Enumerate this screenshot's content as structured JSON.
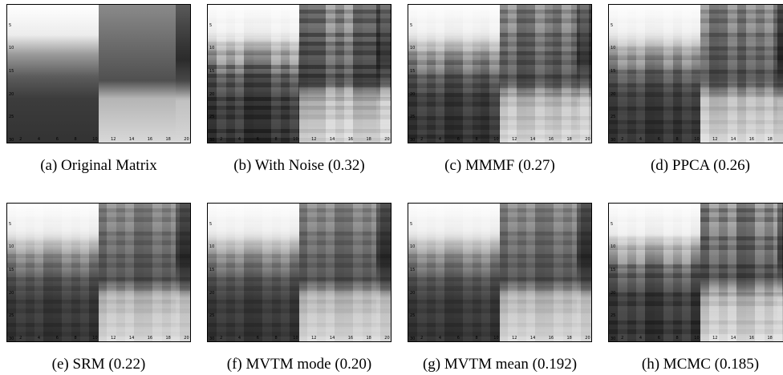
{
  "panels": [
    {
      "caption": "(a) Original Matrix"
    },
    {
      "caption": "(b) With Noise (0.32)"
    },
    {
      "caption": "(c) MMMF (0.27)"
    },
    {
      "caption": "(d) PPCA (0.26)"
    },
    {
      "caption": "(e) SRM (0.22)"
    },
    {
      "caption": "(f) MVTM mode (0.20)"
    },
    {
      "caption": "(g) MVTM mean (0.192)"
    },
    {
      "caption": "(h) MCMC (0.185)"
    }
  ],
  "xticks": [
    2,
    4,
    6,
    8,
    10,
    12,
    14,
    16,
    18,
    20
  ],
  "yticks": [
    5,
    10,
    15,
    20,
    25,
    30
  ]
}
